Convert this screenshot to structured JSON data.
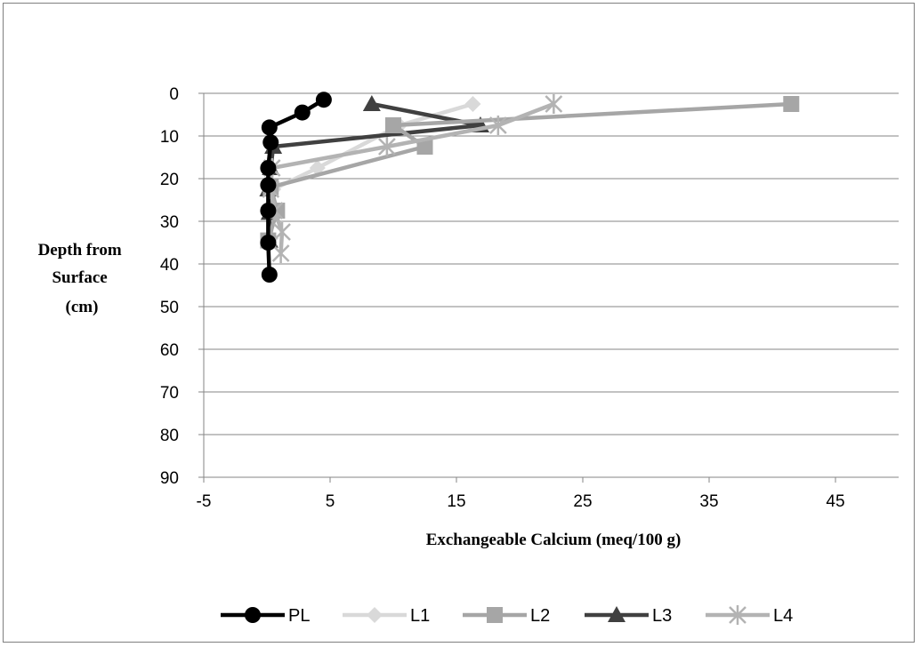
{
  "chart_data": {
    "type": "line",
    "title": "",
    "xlabel": "Exchangeable Calcium (meq/100 g)",
    "ylabel_lines": [
      "Depth from",
      "Surface",
      "(cm)"
    ],
    "xlim": [
      -5,
      50
    ],
    "ylim": [
      0,
      90
    ],
    "y_inverted": true,
    "x_ticks": [
      -5,
      5,
      15,
      25,
      35,
      45
    ],
    "y_ticks": [
      0,
      10,
      20,
      30,
      40,
      50,
      60,
      70,
      80,
      90
    ],
    "grid": "horizontal",
    "legend_position": "bottom",
    "series": [
      {
        "name": "PL",
        "color": "#000000",
        "marker": "circle",
        "points": [
          [
            4.5,
            1.5
          ],
          [
            2.8,
            4.5
          ],
          [
            0.2,
            8
          ],
          [
            0.3,
            11.5
          ],
          [
            0.1,
            17.5
          ],
          [
            0.1,
            21.5
          ],
          [
            0.1,
            27.5
          ],
          [
            0.1,
            35
          ],
          [
            0.2,
            42.5
          ]
        ]
      },
      {
        "name": "L1",
        "color": "#d9d9d9",
        "marker": "diamond",
        "points": [
          [
            16.3,
            2.5
          ],
          [
            10.5,
            7.5
          ],
          [
            4,
            17.5
          ],
          [
            0.5,
            22.5
          ],
          [
            0.5,
            27.5
          ],
          [
            0.3,
            34
          ]
        ]
      },
      {
        "name": "L2",
        "color": "#a6a6a6",
        "marker": "square",
        "points": [
          [
            41.5,
            2.5
          ],
          [
            10,
            7.5
          ],
          [
            12.5,
            12.5
          ],
          [
            0.3,
            22
          ],
          [
            0.8,
            27.5
          ],
          [
            0.1,
            34.5
          ]
        ]
      },
      {
        "name": "L3",
        "color": "#404040",
        "marker": "triangle",
        "points": [
          [
            8.3,
            2.5
          ],
          [
            16.9,
            7.5
          ],
          [
            0.5,
            12.5
          ],
          [
            0.3,
            17.5
          ],
          [
            0.1,
            22.5
          ],
          [
            0.2,
            28
          ],
          [
            0.2,
            34.5
          ]
        ]
      },
      {
        "name": "L4",
        "color": "#b3b3b3",
        "marker": "star",
        "points": [
          [
            22.7,
            2.5
          ],
          [
            18.3,
            7.5
          ],
          [
            9.5,
            12.5
          ],
          [
            0.4,
            17.5
          ],
          [
            0.3,
            22.5
          ],
          [
            0.6,
            27.5
          ],
          [
            1.2,
            32.5
          ],
          [
            1.1,
            37.5
          ]
        ]
      }
    ]
  }
}
